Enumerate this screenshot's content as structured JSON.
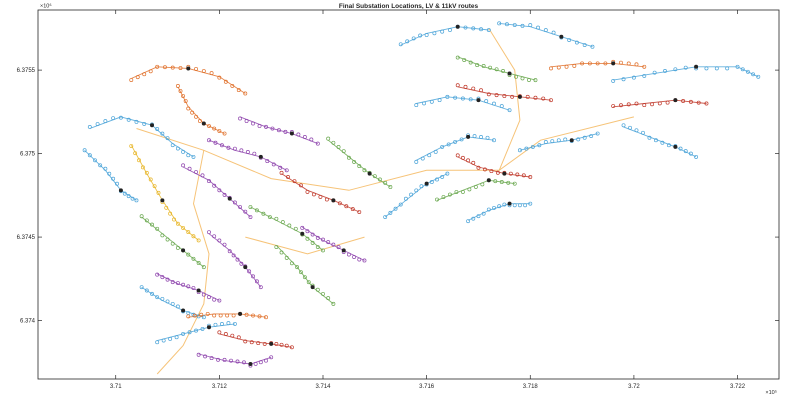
{
  "chart_data": {
    "type": "scatter",
    "title": "Final Substation Locations, LV & 11kV routes",
    "xlabel": "",
    "ylabel": "",
    "x_exponent_label": "×10⁵",
    "y_exponent_label": "×10⁶",
    "xlim": [
      3.7085,
      3.7228
    ],
    "ylim": [
      6.37365,
      6.37586
    ],
    "x_ticks": [
      3.71,
      3.712,
      3.714,
      3.716,
      3.718,
      3.72,
      3.722
    ],
    "x_tick_labels": [
      "3.71",
      "3.712",
      "3.714",
      "3.716",
      "3.718",
      "3.72",
      "3.722"
    ],
    "y_ticks": [
      6.374,
      6.3745,
      6.375,
      6.3755
    ],
    "y_tick_labels": [
      "6.374",
      "6.3745",
      "6.375",
      "6.3755"
    ],
    "grid": false,
    "legend": "none",
    "colors": {
      "axis": "#262626",
      "route_11kv": "#f4b860",
      "groups": [
        "#4aa3d8",
        "#e0702a",
        "#8e44ad",
        "#6aa84f",
        "#e8b628",
        "#c0392b",
        "#222222",
        "#2c7fb8"
      ]
    },
    "groups": [
      {
        "color_index": 0,
        "route": [
          [
            3.7095,
            6.37515
          ],
          [
            3.7101,
            6.37522
          ],
          [
            3.7107,
            6.37517
          ],
          [
            3.7111,
            6.37506
          ],
          [
            3.7115,
            6.37498
          ]
        ]
      },
      {
        "color_index": 0,
        "route": [
          [
            3.7094,
            6.37502
          ],
          [
            3.7098,
            6.3749
          ],
          [
            3.7101,
            6.37478
          ],
          [
            3.7104,
            6.37472
          ]
        ]
      },
      {
        "color_index": 1,
        "route": [
          [
            3.7103,
            6.37545
          ],
          [
            3.7108,
            6.37552
          ],
          [
            3.7114,
            6.37551
          ],
          [
            3.712,
            6.37546
          ],
          [
            3.7125,
            6.37536
          ]
        ]
      },
      {
        "color_index": 1,
        "route": [
          [
            3.7112,
            6.3754
          ],
          [
            3.7114,
            6.37528
          ],
          [
            3.7117,
            6.37518
          ],
          [
            3.7121,
            6.37512
          ]
        ]
      },
      {
        "color_index": 4,
        "route": [
          [
            3.7103,
            6.37505
          ],
          [
            3.7106,
            6.37488
          ],
          [
            3.7109,
            6.37472
          ],
          [
            3.7112,
            6.37458
          ],
          [
            3.7116,
            6.37448
          ]
        ]
      },
      {
        "color_index": 2,
        "route": [
          [
            3.7113,
            6.37492
          ],
          [
            3.7118,
            6.37484
          ],
          [
            3.7122,
            6.37473
          ],
          [
            3.7126,
            6.37462
          ]
        ]
      },
      {
        "color_index": 2,
        "route": [
          [
            3.7118,
            6.37508
          ],
          [
            3.7123,
            6.37502
          ],
          [
            3.7128,
            6.37498
          ],
          [
            3.7133,
            6.3749
          ]
        ]
      },
      {
        "color_index": 2,
        "route": [
          [
            3.7124,
            6.37522
          ],
          [
            3.7129,
            6.37516
          ],
          [
            3.7134,
            6.37512
          ],
          [
            3.7139,
            6.37506
          ]
        ]
      },
      {
        "color_index": 3,
        "route": [
          [
            3.7105,
            6.37462
          ],
          [
            3.7109,
            6.37452
          ],
          [
            3.7113,
            6.37442
          ],
          [
            3.7117,
            6.37432
          ]
        ]
      },
      {
        "color_index": 2,
        "route": [
          [
            3.7108,
            6.37428
          ],
          [
            3.7112,
            6.37422
          ],
          [
            3.7116,
            6.37418
          ],
          [
            3.712,
            6.37412
          ]
        ]
      },
      {
        "color_index": 2,
        "route": [
          [
            3.7118,
            6.37452
          ],
          [
            3.7122,
            6.37442
          ],
          [
            3.7125,
            6.37432
          ],
          [
            3.7128,
            6.3742
          ]
        ]
      },
      {
        "color_index": 3,
        "route": [
          [
            3.7126,
            6.37468
          ],
          [
            3.7131,
            6.3746
          ],
          [
            3.7136,
            6.37452
          ],
          [
            3.714,
            6.37442
          ]
        ]
      },
      {
        "color_index": 3,
        "route": [
          [
            3.7131,
            6.37445
          ],
          [
            3.7135,
            6.37432
          ],
          [
            3.7138,
            6.3742
          ],
          [
            3.7142,
            6.3741
          ]
        ]
      },
      {
        "color_index": 5,
        "route": [
          [
            3.7132,
            6.37488
          ],
          [
            3.7137,
            6.37478
          ],
          [
            3.7142,
            6.37472
          ],
          [
            3.7147,
            6.37465
          ]
        ]
      },
      {
        "color_index": 2,
        "route": [
          [
            3.7136,
            6.37456
          ],
          [
            3.714,
            6.37448
          ],
          [
            3.7144,
            6.37442
          ],
          [
            3.7148,
            6.37436
          ]
        ]
      },
      {
        "color_index": 3,
        "route": [
          [
            3.7141,
            6.37508
          ],
          [
            3.7145,
            6.37498
          ],
          [
            3.7149,
            6.37488
          ],
          [
            3.7153,
            6.3748
          ]
        ]
      },
      {
        "color_index": 0,
        "route": [
          [
            3.7152,
            6.37462
          ],
          [
            3.7156,
            6.37472
          ],
          [
            3.716,
            6.37482
          ],
          [
            3.7164,
            6.37488
          ]
        ]
      },
      {
        "color_index": 0,
        "route": [
          [
            3.7158,
            6.37496
          ],
          [
            3.7163,
            6.37504
          ],
          [
            3.7168,
            6.3751
          ],
          [
            3.7173,
            6.37508
          ]
        ]
      },
      {
        "color_index": 3,
        "route": [
          [
            3.7162,
            6.37472
          ],
          [
            3.7167,
            6.37478
          ],
          [
            3.7172,
            6.37484
          ],
          [
            3.7177,
            6.37482
          ]
        ]
      },
      {
        "color_index": 0,
        "route": [
          [
            3.7168,
            6.3746
          ],
          [
            3.7172,
            6.37466
          ],
          [
            3.7176,
            6.3747
          ],
          [
            3.718,
            6.3747
          ]
        ]
      },
      {
        "color_index": 5,
        "route": [
          [
            3.7166,
            6.37498
          ],
          [
            3.717,
            6.37492
          ],
          [
            3.7175,
            6.37488
          ],
          [
            3.718,
            6.37486
          ]
        ]
      },
      {
        "color_index": 0,
        "route": [
          [
            3.7178,
            6.37502
          ],
          [
            3.7183,
            6.37506
          ],
          [
            3.7188,
            6.37508
          ],
          [
            3.7193,
            6.37512
          ]
        ]
      },
      {
        "color_index": 0,
        "route": [
          [
            3.7158,
            6.3753
          ],
          [
            3.7164,
            6.37534
          ],
          [
            3.717,
            6.37532
          ],
          [
            3.7176,
            6.37526
          ]
        ]
      },
      {
        "color_index": 0,
        "route": [
          [
            3.7155,
            6.37565
          ],
          [
            3.716,
            6.37572
          ],
          [
            3.7166,
            6.37576
          ],
          [
            3.7172,
            6.37574
          ]
        ]
      },
      {
        "color_index": 3,
        "route": [
          [
            3.7166,
            6.37558
          ],
          [
            3.7171,
            6.37552
          ],
          [
            3.7176,
            6.37548
          ],
          [
            3.7181,
            6.37544
          ]
        ]
      },
      {
        "color_index": 5,
        "route": [
          [
            3.7166,
            6.3754
          ],
          [
            3.7172,
            6.37536
          ],
          [
            3.7178,
            6.37534
          ],
          [
            3.7184,
            6.37532
          ]
        ]
      },
      {
        "color_index": 0,
        "route": [
          [
            3.7174,
            6.37578
          ],
          [
            3.718,
            6.37576
          ],
          [
            3.7186,
            6.3757
          ],
          [
            3.7192,
            6.37564
          ]
        ]
      },
      {
        "color_index": 1,
        "route": [
          [
            3.7184,
            6.37552
          ],
          [
            3.719,
            6.37554
          ],
          [
            3.7196,
            6.37554
          ],
          [
            3.7202,
            6.37552
          ]
        ]
      },
      {
        "color_index": 5,
        "route": [
          [
            3.7196,
            6.37528
          ],
          [
            3.7202,
            6.3753
          ],
          [
            3.7208,
            6.37532
          ],
          [
            3.7214,
            6.3753
          ]
        ]
      },
      {
        "color_index": 0,
        "route": [
          [
            3.7196,
            6.37544
          ],
          [
            3.7204,
            6.37548
          ],
          [
            3.7212,
            6.37552
          ],
          [
            3.722,
            6.37552
          ],
          [
            3.7224,
            6.37546
          ]
        ]
      },
      {
        "color_index": 0,
        "route": [
          [
            3.7198,
            6.37516
          ],
          [
            3.7203,
            6.3751
          ],
          [
            3.7208,
            6.37504
          ],
          [
            3.7212,
            6.37498
          ]
        ]
      },
      {
        "color_index": 0,
        "route": [
          [
            3.7105,
            6.3742
          ],
          [
            3.7109,
            6.37412
          ],
          [
            3.7113,
            6.37406
          ],
          [
            3.7117,
            6.37402
          ]
        ]
      },
      {
        "color_index": 0,
        "route": [
          [
            3.7108,
            6.37388
          ],
          [
            3.7113,
            6.37392
          ],
          [
            3.7118,
            6.37396
          ],
          [
            3.7123,
            6.37398
          ]
        ]
      },
      {
        "color_index": 1,
        "route": [
          [
            3.7114,
            6.37402
          ],
          [
            3.7119,
            6.37404
          ],
          [
            3.7124,
            6.37404
          ],
          [
            3.7129,
            6.37402
          ]
        ]
      },
      {
        "color_index": 2,
        "route": [
          [
            3.7116,
            6.3738
          ],
          [
            3.7121,
            6.37376
          ],
          [
            3.7126,
            6.37374
          ],
          [
            3.713,
            6.37378
          ]
        ]
      },
      {
        "color_index": 5,
        "route": [
          [
            3.712,
            6.37392
          ],
          [
            3.7125,
            6.37388
          ],
          [
            3.713,
            6.37386
          ],
          [
            3.7134,
            6.37384
          ]
        ]
      }
    ],
    "routes_11kv": [
      [
        [
          3.7104,
          6.37515
        ],
        [
          3.7117,
          6.37502
        ],
        [
          3.713,
          6.37485
        ],
        [
          3.7145,
          6.37478
        ],
        [
          3.716,
          6.3749
        ],
        [
          3.7174,
          6.3749
        ],
        [
          3.7182,
          6.37508
        ],
        [
          3.72,
          6.37522
        ]
      ],
      [
        [
          3.7117,
          6.37502
        ],
        [
          3.7115,
          6.3747
        ],
        [
          3.7118,
          6.3744
        ],
        [
          3.7117,
          6.3741
        ],
        [
          3.7113,
          6.37385
        ],
        [
          3.7108,
          6.37368
        ]
      ],
      [
        [
          3.7174,
          6.3749
        ],
        [
          3.7178,
          6.3752
        ],
        [
          3.7177,
          6.3755
        ],
        [
          3.7172,
          6.37575
        ]
      ],
      [
        [
          3.7125,
          6.3745
        ],
        [
          3.7137,
          6.3744
        ],
        [
          3.7148,
          6.3745
        ]
      ]
    ]
  }
}
